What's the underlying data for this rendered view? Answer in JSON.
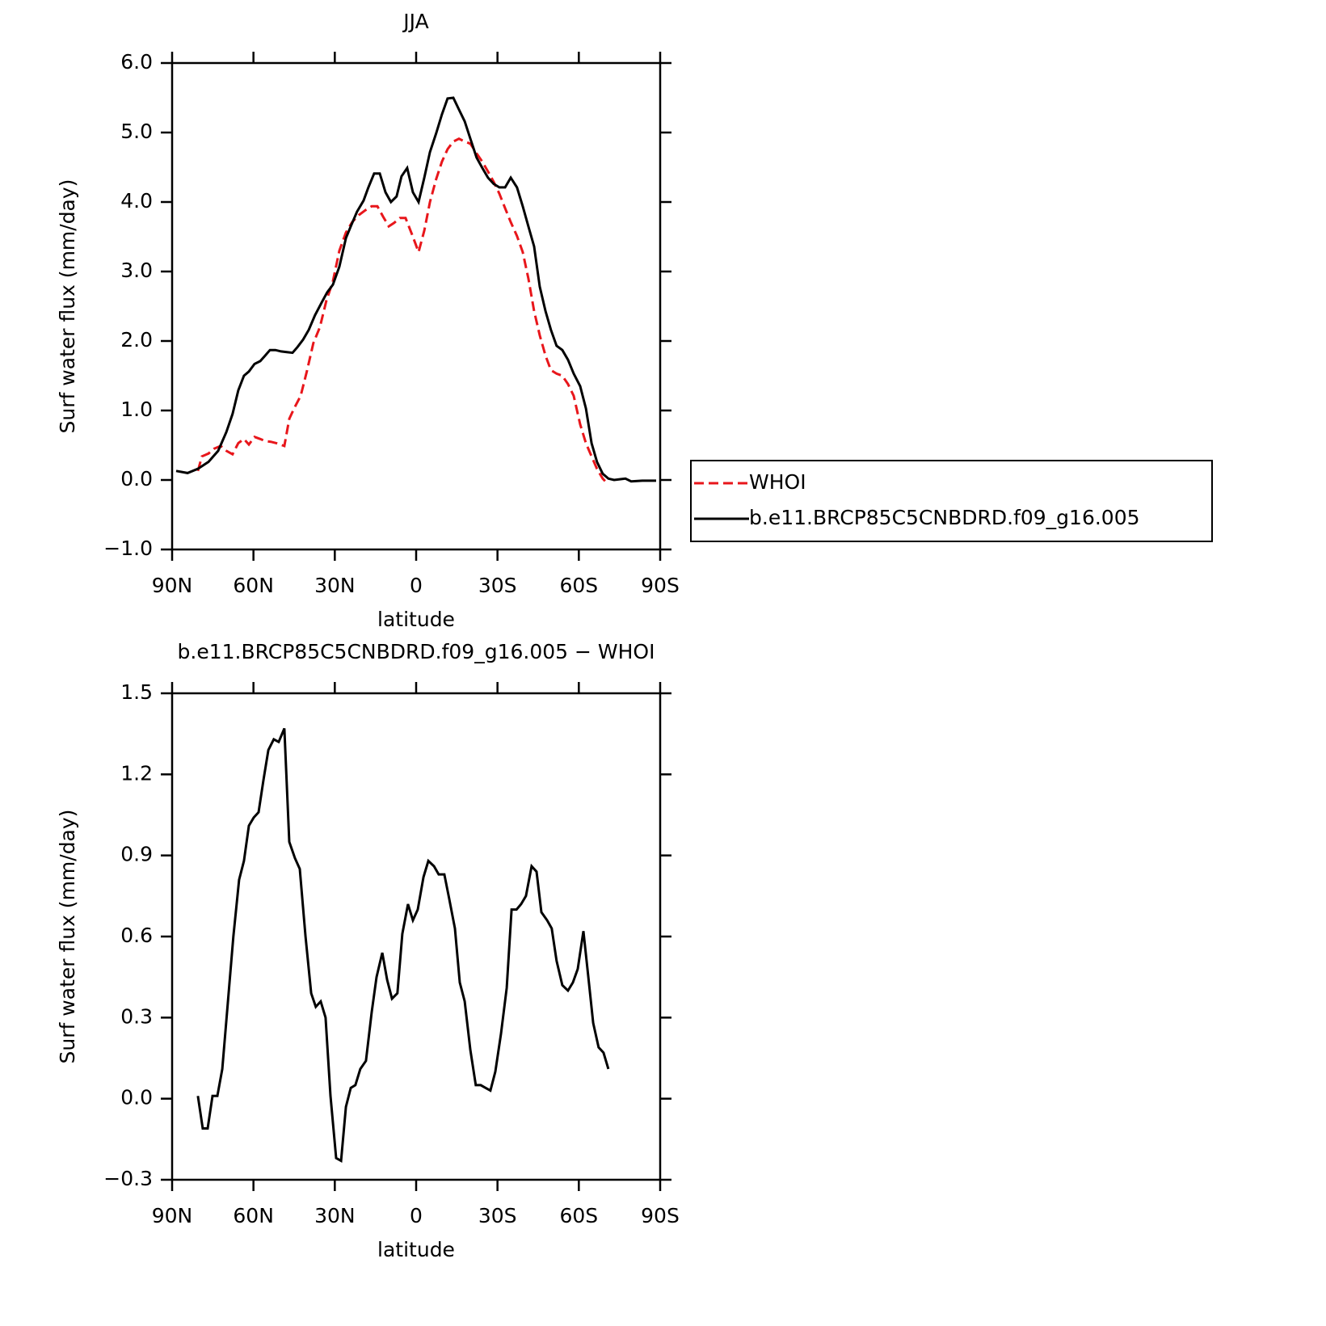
{
  "chart_data": [
    {
      "type": "line",
      "title": "JJA",
      "xlabel": "latitude",
      "ylabel": "Surf water flux (mm/day)",
      "xlim": [
        90,
        -90
      ],
      "xticks": [
        {
          "value": 90,
          "label": "90N"
        },
        {
          "value": 60,
          "label": "60N"
        },
        {
          "value": 30,
          "label": "30N"
        },
        0,
        {
          "value": -30,
          "label": "30S"
        },
        {
          "value": -60,
          "label": "60S"
        },
        {
          "value": -90,
          "label": "90S"
        }
      ],
      "ylim": [
        -1,
        6
      ],
      "yticks": [
        {
          "value": -1,
          "label": "−1.0"
        },
        {
          "value": 0,
          "label": "0.0"
        },
        {
          "value": 1,
          "label": "1.0"
        },
        {
          "value": 2,
          "label": "2.0"
        },
        {
          "value": 3,
          "label": "3.0"
        },
        {
          "value": 4,
          "label": "4.0"
        },
        {
          "value": 5,
          "label": "5.0"
        },
        {
          "value": 6,
          "label": "6.0"
        }
      ],
      "legend": "right",
      "series": [
        {
          "name": "WHOI",
          "color": "#e8161b",
          "dashed": true,
          "x": [
            80.5,
            79.0,
            76.6,
            74.5,
            72.1,
            70.0,
            67.7,
            65.6,
            63.5,
            61.7,
            59.6,
            57.5,
            55.7,
            53.6,
            51.6,
            48.6,
            46.8,
            45.0,
            42.6,
            40.2,
            37.9,
            35.5,
            33.1,
            30.7,
            28.3,
            25.9,
            23.6,
            21.2,
            18.8,
            16.4,
            14.3,
            12.2,
            10.1,
            8.1,
            6.0,
            3.9,
            1.5,
            -0.9,
            -3.0,
            -5.1,
            -7.4,
            -9.5,
            -11.6,
            -13.7,
            -15.8,
            -17.9,
            -20.0,
            -22.3,
            -24.4,
            -26.5,
            -28.6,
            -30.7,
            -32.8,
            -34.9,
            -37.2,
            -39.3,
            -41.4,
            -43.5,
            -45.6,
            -47.7,
            -49.7,
            -51.8,
            -53.9,
            -56.0,
            -58.1,
            -60.5,
            -62.6,
            -64.7,
            -66.7,
            -68.8,
            -70.6
          ],
          "values": [
            0.13,
            0.34,
            0.38,
            0.45,
            0.49,
            0.42,
            0.37,
            0.53,
            0.59,
            0.51,
            0.62,
            0.59,
            0.56,
            0.55,
            0.53,
            0.49,
            0.88,
            1.03,
            1.21,
            1.58,
            1.97,
            2.2,
            2.58,
            2.86,
            3.3,
            3.56,
            3.71,
            3.81,
            3.88,
            3.94,
            3.94,
            3.79,
            3.65,
            3.7,
            3.77,
            3.77,
            3.53,
            3.28,
            3.59,
            4.0,
            4.33,
            4.58,
            4.76,
            4.87,
            4.91,
            4.87,
            4.84,
            4.7,
            4.58,
            4.44,
            4.29,
            4.12,
            3.91,
            3.71,
            3.51,
            3.28,
            2.9,
            2.43,
            2.08,
            1.79,
            1.58,
            1.53,
            1.5,
            1.38,
            1.21,
            0.8,
            0.53,
            0.34,
            0.16,
            0.02,
            -0.05
          ]
        },
        {
          "name": "b.e11.BRCP85C5CNBDRD.f09_g16.005",
          "color": "#000000",
          "dashed": false,
          "x": [
            88.5,
            84.3,
            80.5,
            76.6,
            73.0,
            70.0,
            67.7,
            65.6,
            63.5,
            61.7,
            59.6,
            57.5,
            55.7,
            53.9,
            51.9,
            49.8,
            47.7,
            45.6,
            43.8,
            41.7,
            39.6,
            37.3,
            34.9,
            32.8,
            30.7,
            28.3,
            25.9,
            23.9,
            21.8,
            19.4,
            17.6,
            15.5,
            13.4,
            11.3,
            9.3,
            7.2,
            5.4,
            3.3,
            1.2,
            -0.9,
            -3.0,
            -5.1,
            -7.4,
            -9.5,
            -11.6,
            -13.7,
            -15.8,
            -17.9,
            -20.0,
            -22.3,
            -24.4,
            -26.5,
            -28.6,
            -30.7,
            -32.8,
            -34.9,
            -37.2,
            -39.3,
            -41.4,
            -43.5,
            -45.6,
            -47.7,
            -49.7,
            -51.8,
            -53.9,
            -56.0,
            -58.1,
            -60.5,
            -62.6,
            -64.7,
            -66.7,
            -68.8,
            -70.9,
            -73.0,
            -75.1,
            -77.2,
            -79.3,
            -83.4,
            -88.5
          ],
          "values": [
            0.13,
            0.1,
            0.16,
            0.26,
            0.42,
            0.69,
            0.95,
            1.29,
            1.5,
            1.56,
            1.67,
            1.71,
            1.79,
            1.87,
            1.87,
            1.85,
            1.84,
            1.83,
            1.91,
            2.02,
            2.16,
            2.37,
            2.55,
            2.7,
            2.81,
            3.07,
            3.48,
            3.67,
            3.86,
            4.02,
            4.21,
            4.41,
            4.41,
            4.14,
            4.0,
            4.08,
            4.37,
            4.49,
            4.14,
            4.0,
            4.35,
            4.72,
            4.99,
            5.26,
            5.49,
            5.5,
            5.33,
            5.16,
            4.91,
            4.64,
            4.49,
            4.35,
            4.26,
            4.21,
            4.21,
            4.35,
            4.21,
            3.94,
            3.65,
            3.36,
            2.78,
            2.43,
            2.16,
            1.93,
            1.87,
            1.73,
            1.53,
            1.35,
            1.03,
            0.53,
            0.26,
            0.09,
            0.02,
            0.0,
            0.01,
            0.02,
            -0.02,
            -0.01,
            -0.01
          ]
        }
      ]
    },
    {
      "type": "line",
      "title": "b.e11.BRCP85C5CNBDRD.f09_g16.005 − WHOI",
      "xlabel": "latitude",
      "ylabel": "Surf water flux (mm/day)",
      "xlim": [
        90,
        -90
      ],
      "xticks": [
        {
          "value": 90,
          "label": "90N"
        },
        {
          "value": 60,
          "label": "60N"
        },
        {
          "value": 30,
          "label": "30N"
        },
        0,
        {
          "value": -30,
          "label": "30S"
        },
        {
          "value": -60,
          "label": "60S"
        },
        {
          "value": -90,
          "label": "90S"
        }
      ],
      "ylim": [
        -0.3,
        1.5
      ],
      "yticks": [
        {
          "value": -0.3,
          "label": "−0.3"
        },
        {
          "value": 0,
          "label": "0.0"
        },
        0.3,
        0.6,
        0.9,
        1.2,
        1.5
      ],
      "color": "#000000",
      "x": [
        80.5,
        78.7,
        76.9,
        75.1,
        73.3,
        71.5,
        69.4,
        67.4,
        65.3,
        63.5,
        61.7,
        59.9,
        58.1,
        56.3,
        54.5,
        52.5,
        50.7,
        48.6,
        46.8,
        44.7,
        42.9,
        40.8,
        38.7,
        37.0,
        35.2,
        33.4,
        31.6,
        29.5,
        27.7,
        25.9,
        24.1,
        22.4,
        20.6,
        18.5,
        16.4,
        14.6,
        12.5,
        10.7,
        8.9,
        6.9,
        5.1,
        3.0,
        1.2,
        -0.6,
        -2.7,
        -4.5,
        -6.6,
        -8.3,
        -10.4,
        -12.2,
        -14.3,
        -16.1,
        -17.9,
        -20.0,
        -22.0,
        -23.8,
        -25.6,
        -27.4,
        -29.2,
        -31.3,
        -33.4,
        -35.2,
        -37.0,
        -38.7,
        -40.5,
        -42.6,
        -44.4,
        -46.2,
        -48.3,
        -50.0,
        -51.8,
        -53.9,
        -56.0,
        -57.8,
        -59.6,
        -61.7,
        -63.5,
        -65.3,
        -67.3,
        -69.1,
        -70.9
      ],
      "values": [
        0.01,
        -0.11,
        -0.11,
        0.01,
        0.01,
        0.11,
        0.36,
        0.6,
        0.81,
        0.88,
        1.01,
        1.04,
        1.06,
        1.18,
        1.29,
        1.33,
        1.32,
        1.37,
        0.95,
        0.89,
        0.85,
        0.6,
        0.39,
        0.34,
        0.36,
        0.3,
        0.01,
        -0.22,
        -0.23,
        -0.03,
        0.04,
        0.05,
        0.11,
        0.14,
        0.32,
        0.45,
        0.54,
        0.44,
        0.37,
        0.39,
        0.61,
        0.72,
        0.66,
        0.7,
        0.82,
        0.88,
        0.86,
        0.83,
        0.83,
        0.74,
        0.63,
        0.43,
        0.36,
        0.18,
        0.05,
        0.05,
        0.04,
        0.03,
        0.1,
        0.24,
        0.41,
        0.7,
        0.7,
        0.72,
        0.75,
        0.86,
        0.84,
        0.69,
        0.66,
        0.63,
        0.51,
        0.42,
        0.4,
        0.43,
        0.48,
        0.62,
        0.45,
        0.28,
        0.19,
        0.17,
        0.11
      ]
    }
  ]
}
